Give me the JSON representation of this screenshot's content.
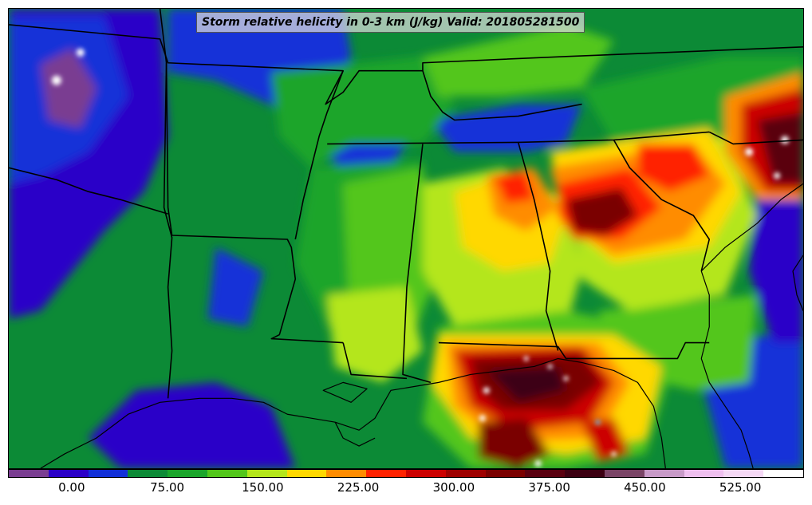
{
  "title": "Storm relative helicity in 0-3 km (J/kg) Valid: 201805281500",
  "colorbar": {
    "colors": [
      "#7a3d91",
      "#2b00c8",
      "#1230d8",
      "#0c8a36",
      "#1aa52a",
      "#52c61a",
      "#b4e61a",
      "#ffd800",
      "#ff8c00",
      "#ff2200",
      "#cc0000",
      "#9e0000",
      "#7a0000",
      "#5a0010",
      "#3c0012",
      "#7a4466",
      "#c89ac8",
      "#efbfef",
      "#f5d8f5",
      "#ffffff"
    ],
    "ticks": [
      {
        "label": "0.00",
        "frac": 0.08
      },
      {
        "label": "75.00",
        "frac": 0.2
      },
      {
        "label": "150.00",
        "frac": 0.32
      },
      {
        "label": "225.00",
        "frac": 0.44
      },
      {
        "label": "300.00",
        "frac": 0.56
      },
      {
        "label": "375.00",
        "frac": 0.68
      },
      {
        "label": "450.00",
        "frac": 0.8
      },
      {
        "label": "525.00",
        "frac": 0.92
      }
    ]
  }
}
